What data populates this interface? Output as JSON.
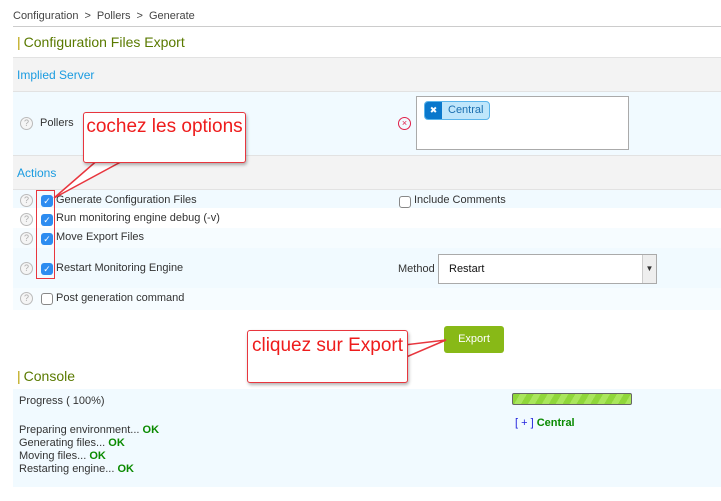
{
  "breadcrumb": [
    "Configuration",
    "Pollers",
    "Generate"
  ],
  "breadcrumb_sep": ">",
  "title": "Configuration Files Export",
  "implied_server": {
    "header": "Implied Server",
    "pollers_label": "Pollers",
    "selected": [
      "Central"
    ]
  },
  "actions": {
    "header": "Actions",
    "options": [
      {
        "label": "Generate Configuration Files",
        "checked": true
      },
      {
        "label": "Run monitoring engine debug (-v)",
        "checked": true
      },
      {
        "label": "Move Export Files",
        "checked": true
      },
      {
        "label": "Restart Monitoring Engine",
        "checked": true
      },
      {
        "label": "Post generation command",
        "checked": false
      }
    ],
    "include_comments": {
      "label": "Include Comments",
      "checked": false
    },
    "method_label": "Method",
    "method_value": "Restart"
  },
  "export_button": "Export",
  "console": {
    "title": "Console",
    "progress_label": "Progress ( 100%)",
    "progress": 100,
    "log": [
      {
        "text": "Preparing environment...",
        "status": "OK"
      },
      {
        "text": "Generating files...",
        "status": "OK"
      },
      {
        "text": "Moving files...",
        "status": "OK"
      },
      {
        "text": "Restarting engine...",
        "status": "OK"
      }
    ],
    "poller_toggle": "[ + ]",
    "poller_name": "Central"
  },
  "callouts": {
    "first": "cochez les options",
    "second": "cliquez sur Export"
  },
  "colors": {
    "accent": "#1a9be0",
    "title": "#5a7a00",
    "ok": "#0a8a00",
    "button": "#88b917",
    "callout": "#e8363e"
  }
}
